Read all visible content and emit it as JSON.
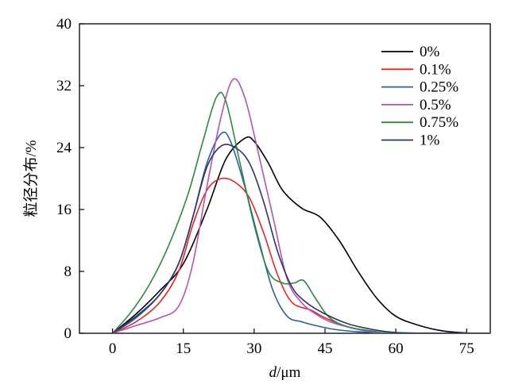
{
  "chart_data": {
    "type": "line",
    "xlabel_italic": "d",
    "xlabel_unit": "/μm",
    "ylabel": "粒径分布/%",
    "xlim": [
      -7,
      80
    ],
    "ylim": [
      0,
      40
    ],
    "xticks": [
      0,
      15,
      30,
      45,
      60,
      75
    ],
    "yticks": [
      0,
      8,
      16,
      24,
      32,
      40
    ],
    "legend_position": "top-right",
    "series": [
      {
        "name": "0%",
        "color": "#000000",
        "points": [
          [
            0,
            0
          ],
          [
            5,
            2.5
          ],
          [
            10,
            5.5
          ],
          [
            15,
            9
          ],
          [
            20,
            16
          ],
          [
            24,
            22.5
          ],
          [
            28,
            25.2
          ],
          [
            30,
            24.8
          ],
          [
            33,
            22
          ],
          [
            36,
            18.5
          ],
          [
            40,
            16.2
          ],
          [
            44,
            15
          ],
          [
            48,
            12
          ],
          [
            52,
            8
          ],
          [
            56,
            4.5
          ],
          [
            60,
            2.2
          ],
          [
            65,
            1
          ],
          [
            70,
            0.3
          ],
          [
            75,
            0.05
          ],
          [
            80,
            0
          ]
        ]
      },
      {
        "name": "0.1%",
        "color": "#e8251f",
        "points": [
          [
            0,
            0
          ],
          [
            5,
            1.5
          ],
          [
            10,
            4
          ],
          [
            14,
            8
          ],
          [
            17,
            14
          ],
          [
            20,
            18.5
          ],
          [
            23,
            20
          ],
          [
            26,
            19.5
          ],
          [
            29,
            17.5
          ],
          [
            32,
            13
          ],
          [
            35,
            7.5
          ],
          [
            38,
            4
          ],
          [
            42,
            3
          ],
          [
            45,
            2
          ],
          [
            50,
            0.8
          ],
          [
            55,
            0.2
          ],
          [
            60,
            0
          ],
          [
            80,
            0
          ]
        ]
      },
      {
        "name": "0.25%",
        "color": "#2a5daa",
        "points": [
          [
            0,
            0
          ],
          [
            5,
            2
          ],
          [
            10,
            5
          ],
          [
            14,
            9
          ],
          [
            17,
            15
          ],
          [
            20,
            22
          ],
          [
            23,
            25.8
          ],
          [
            25,
            24.8
          ],
          [
            28,
            19
          ],
          [
            31,
            12
          ],
          [
            34,
            5.5
          ],
          [
            37,
            2.2
          ],
          [
            40,
            1.5
          ],
          [
            43,
            1
          ],
          [
            47,
            0.5
          ],
          [
            52,
            0.2
          ],
          [
            60,
            0
          ],
          [
            80,
            0
          ]
        ]
      },
      {
        "name": "0.5%",
        "color": "#b653b3",
        "points": [
          [
            0,
            0
          ],
          [
            5,
            1
          ],
          [
            10,
            2
          ],
          [
            14,
            3.5
          ],
          [
            17,
            9
          ],
          [
            20,
            19
          ],
          [
            23,
            28
          ],
          [
            25.5,
            32.8
          ],
          [
            28,
            30.5
          ],
          [
            31,
            23
          ],
          [
            34,
            15
          ],
          [
            37,
            7
          ],
          [
            40,
            4
          ],
          [
            43,
            2.5
          ],
          [
            46,
            1.5
          ],
          [
            50,
            0.8
          ],
          [
            55,
            0.2
          ],
          [
            60,
            0
          ],
          [
            80,
            0
          ]
        ]
      },
      {
        "name": "0.75%",
        "color": "#2b8a3e",
        "points": [
          [
            0,
            0
          ],
          [
            4,
            2.8
          ],
          [
            8,
            6.5
          ],
          [
            12,
            11.5
          ],
          [
            16,
            18
          ],
          [
            19,
            24.5
          ],
          [
            22,
            30.5
          ],
          [
            24,
            30
          ],
          [
            27,
            22
          ],
          [
            30,
            14
          ],
          [
            33,
            8
          ],
          [
            36,
            6.5
          ],
          [
            38.5,
            6.5
          ],
          [
            40.5,
            6.8
          ],
          [
            43,
            4.5
          ],
          [
            46,
            2
          ],
          [
            50,
            0.8
          ],
          [
            55,
            0.3
          ],
          [
            60,
            0
          ],
          [
            80,
            0
          ]
        ]
      },
      {
        "name": "1%",
        "color": "#2c3470",
        "points": [
          [
            0,
            0
          ],
          [
            5,
            2.2
          ],
          [
            10,
            5
          ],
          [
            14,
            9
          ],
          [
            17,
            15
          ],
          [
            20,
            21.5
          ],
          [
            23,
            24.2
          ],
          [
            26,
            24
          ],
          [
            29,
            22
          ],
          [
            32,
            17
          ],
          [
            35,
            10.5
          ],
          [
            38,
            6
          ],
          [
            41,
            4
          ],
          [
            45,
            2.5
          ],
          [
            50,
            1.2
          ],
          [
            55,
            0.5
          ],
          [
            60,
            0.1
          ],
          [
            70,
            0
          ],
          [
            80,
            0
          ]
        ]
      }
    ]
  }
}
